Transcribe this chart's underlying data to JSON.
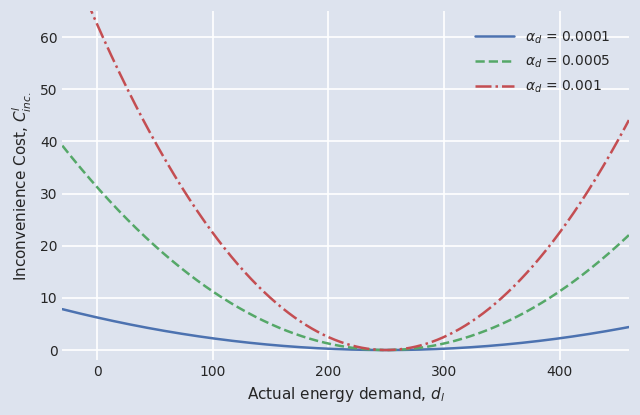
{
  "alpha_values": [
    0.0001,
    0.0005,
    0.001
  ],
  "d_ref": 250,
  "d_min": -30,
  "d_max": 460,
  "xlim": [
    -30,
    460
  ],
  "ylim": [
    -2,
    65
  ],
  "xticks": [
    0,
    100,
    200,
    300,
    400
  ],
  "yticks": [
    0,
    10,
    20,
    30,
    40,
    50,
    60
  ],
  "xlabel": "Actual energy demand, $d_l$",
  "ylabel": "Inconvenience Cost, $C^l_{inc.}$",
  "colors": [
    "#4c72b0",
    "#55a868",
    "#c44e52"
  ],
  "linestyles": [
    "-",
    "--",
    "-."
  ],
  "linewidths": [
    1.8,
    1.8,
    1.8
  ],
  "alpha_str": [
    "0.0001",
    "0.0005",
    "0.001"
  ],
  "background_color": "#dde3ee",
  "grid_color": "#ffffff",
  "legend_fontsize": 10,
  "axis_fontsize": 11,
  "tick_fontsize": 10
}
